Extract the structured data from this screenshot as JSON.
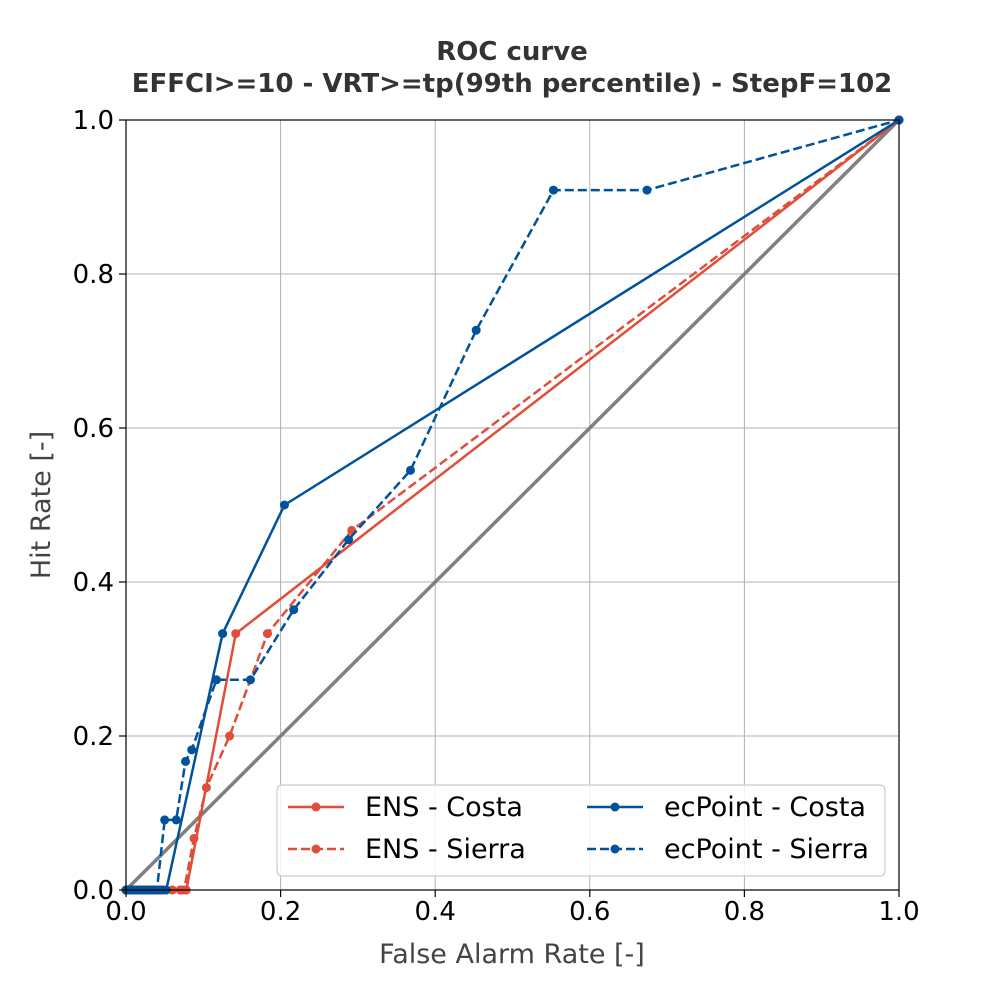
{
  "chart_data": {
    "type": "line",
    "title_line1": "ROC curve",
    "title_line2": "EFFCI>=10 - VRT>=tp(99th percentile) - StepF=102",
    "xlabel": "False Alarm Rate [-]",
    "ylabel": "Hit Rate [-]",
    "xlim": [
      0.0,
      1.0
    ],
    "ylim": [
      0.0,
      1.0
    ],
    "xticks": [
      "0.0",
      "0.2",
      "0.4",
      "0.6",
      "0.8",
      "1.0"
    ],
    "yticks": [
      "0.0",
      "0.2",
      "0.4",
      "0.6",
      "0.8",
      "1.0"
    ],
    "grid": true,
    "legend_position": "lower-right",
    "diagonal": {
      "x": [
        0.0,
        1.0
      ],
      "y": [
        0.0,
        1.0
      ],
      "color": "#808080"
    },
    "series": [
      {
        "name": "ENS - Costa",
        "color": "#e04e39",
        "dash": "solid",
        "x": [
          0.0,
          0.004,
          0.008,
          0.012,
          0.016,
          0.02,
          0.024,
          0.028,
          0.032,
          0.036,
          0.04,
          0.045,
          0.06,
          0.072,
          0.078,
          0.142,
          1.0
        ],
        "y": [
          0.0,
          0.0,
          0.0,
          0.0,
          0.0,
          0.0,
          0.0,
          0.0,
          0.0,
          0.0,
          0.0,
          0.0,
          0.0,
          0.0,
          0.0,
          0.333,
          1.0
        ]
      },
      {
        "name": "ENS - Sierra",
        "color": "#e04e39",
        "dash": "dashed",
        "x": [
          0.0,
          0.004,
          0.008,
          0.012,
          0.016,
          0.02,
          0.024,
          0.028,
          0.032,
          0.036,
          0.04,
          0.048,
          0.06,
          0.07,
          0.075,
          0.088,
          0.104,
          0.134,
          0.183,
          0.292,
          1.0
        ],
        "y": [
          0.0,
          0.0,
          0.0,
          0.0,
          0.0,
          0.0,
          0.0,
          0.0,
          0.0,
          0.0,
          0.0,
          0.0,
          0.0,
          0.0,
          0.0,
          0.067,
          0.133,
          0.2,
          0.333,
          0.467,
          1.0
        ]
      },
      {
        "name": "ecPoint - Costa",
        "color": "#00529b",
        "dash": "solid",
        "x": [
          0.0,
          0.004,
          0.008,
          0.012,
          0.016,
          0.02,
          0.024,
          0.028,
          0.032,
          0.036,
          0.04,
          0.044,
          0.048,
          0.052,
          0.125,
          0.205,
          1.0
        ],
        "y": [
          0.0,
          0.0,
          0.0,
          0.0,
          0.0,
          0.0,
          0.0,
          0.0,
          0.0,
          0.0,
          0.0,
          0.0,
          0.0,
          0.0,
          0.333,
          0.5,
          1.0
        ]
      },
      {
        "name": "ecPoint - Sierra",
        "color": "#00529b",
        "dash": "dashed",
        "x": [
          0.0,
          0.004,
          0.008,
          0.012,
          0.016,
          0.02,
          0.024,
          0.028,
          0.032,
          0.036,
          0.04,
          0.05,
          0.065,
          0.077,
          0.085,
          0.117,
          0.161,
          0.217,
          0.288,
          0.368,
          0.453,
          0.553,
          0.674,
          1.0
        ],
        "y": [
          0.0,
          0.0,
          0.0,
          0.0,
          0.0,
          0.0,
          0.0,
          0.0,
          0.0,
          0.0,
          0.0,
          0.091,
          0.091,
          0.167,
          0.182,
          0.273,
          0.273,
          0.364,
          0.455,
          0.545,
          0.727,
          0.909,
          0.909,
          1.0
        ]
      }
    ]
  }
}
